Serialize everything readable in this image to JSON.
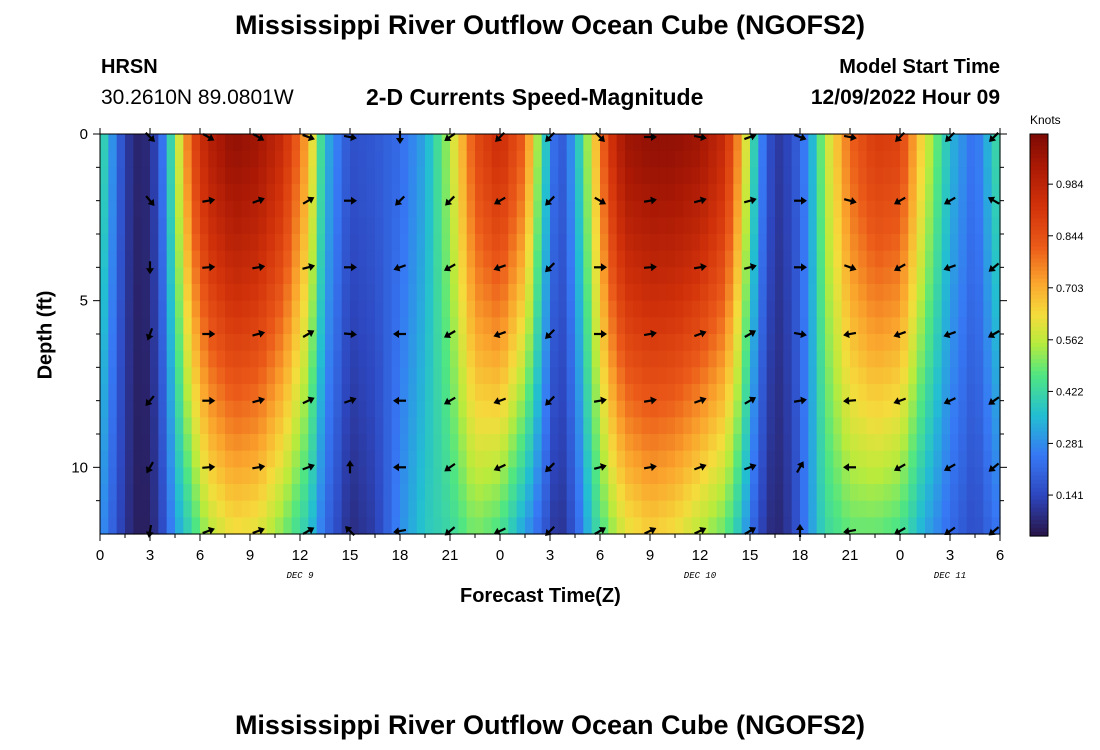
{
  "chart_data": {
    "type": "heatmap",
    "title": "Mississippi River Outflow Ocean Cube (NGOFS2)",
    "title_repeat": "Mississippi River Outflow Ocean Cube (NGOFS2)",
    "station": "HRSN",
    "location": "30.2610N  89.0801W",
    "subtitle": "2-D Currents Speed-Magnitude",
    "model_start_label": "Model Start Time",
    "model_start_value": "12/09/2022 Hour 09",
    "xlabel": "Forecast Time(Z)",
    "ylabel": "Depth (ft)",
    "x_range_hours": [
      0,
      54
    ],
    "y_range_ft": [
      0,
      12
    ],
    "x_tick_labels": [
      "0",
      "3",
      "6",
      "9",
      "12",
      "15",
      "18",
      "21",
      "0",
      "3",
      "6",
      "9",
      "12",
      "15",
      "18",
      "21",
      "0",
      "3",
      "6"
    ],
    "y_tick_values": [
      0,
      5,
      10
    ],
    "y_tick_labels": [
      "0",
      "5",
      "10"
    ],
    "date_labels": [
      {
        "text": "DEC 9",
        "hour": 12
      },
      {
        "text": "DEC 10",
        "hour": 36
      },
      {
        "text": "DEC 11",
        "hour": 51
      }
    ],
    "colorbar": {
      "title": "Knots",
      "min": 0.03,
      "max": 1.12,
      "tick_labels": [
        "0.141",
        "0.281",
        "0.422",
        "0.562",
        "0.703",
        "0.844",
        "0.984"
      ],
      "tick_values": [
        0.141,
        0.281,
        0.422,
        0.562,
        0.703,
        0.844,
        0.984
      ]
    },
    "speed_profile_hours": [
      0,
      1.5,
      2.5,
      3.5,
      4.5,
      5.5,
      6.5,
      8,
      9.5,
      11,
      12.5,
      13.5,
      15,
      16.5,
      18,
      19.5,
      21,
      22.5,
      24,
      25.5,
      26.5,
      27.5,
      28.5,
      29.5,
      30.5,
      31.5,
      33,
      34.5,
      36,
      37.5,
      38.5,
      39.5,
      40.5,
      41.5,
      42.5,
      43.5,
      45,
      46.5,
      48,
      49.5,
      51,
      52.5,
      54
    ],
    "surface_speed_knots": [
      0.45,
      0.12,
      0.05,
      0.15,
      0.5,
      0.85,
      1.0,
      1.08,
      1.05,
      0.95,
      0.7,
      0.35,
      0.16,
      0.18,
      0.22,
      0.32,
      0.55,
      0.85,
      0.95,
      0.8,
      0.45,
      0.15,
      0.32,
      0.6,
      0.9,
      1.05,
      1.08,
      1.08,
      1.05,
      0.95,
      0.7,
      0.3,
      0.1,
      0.15,
      0.28,
      0.55,
      0.8,
      0.9,
      0.88,
      0.6,
      0.35,
      0.22,
      0.45
    ],
    "bottom_speed_knots": [
      0.3,
      0.1,
      0.04,
      0.1,
      0.3,
      0.42,
      0.55,
      0.62,
      0.6,
      0.5,
      0.38,
      0.22,
      0.08,
      0.12,
      0.28,
      0.38,
      0.42,
      0.5,
      0.45,
      0.3,
      0.2,
      0.08,
      0.18,
      0.38,
      0.5,
      0.6,
      0.65,
      0.62,
      0.55,
      0.48,
      0.35,
      0.15,
      0.06,
      0.12,
      0.28,
      0.42,
      0.48,
      0.48,
      0.45,
      0.32,
      0.22,
      0.15,
      0.25
    ],
    "arrow_depths_ft": [
      0,
      2,
      4,
      6,
      8,
      10,
      12
    ],
    "arrows": [
      {
        "hour": 3,
        "directions_deg": [
          -45,
          -50,
          -90,
          -110,
          -130,
          -120,
          -100
        ]
      },
      {
        "hour": 6.5,
        "directions_deg": [
          -30,
          10,
          5,
          0,
          0,
          5,
          20
        ]
      },
      {
        "hour": 9.5,
        "directions_deg": [
          -30,
          20,
          10,
          15,
          15,
          10,
          20
        ]
      },
      {
        "hour": 12.5,
        "directions_deg": [
          -20,
          30,
          15,
          30,
          25,
          20,
          30
        ]
      },
      {
        "hour": 15,
        "directions_deg": [
          -10,
          0,
          0,
          -5,
          20,
          90,
          135
        ]
      },
      {
        "hour": 18,
        "directions_deg": [
          -90,
          -135,
          -160,
          180,
          180,
          180,
          -170
        ]
      },
      {
        "hour": 21,
        "directions_deg": [
          -145,
          -135,
          -150,
          -150,
          -150,
          -145,
          -140
        ]
      },
      {
        "hour": 24,
        "directions_deg": [
          -135,
          -150,
          -160,
          -160,
          -160,
          -155,
          -155
        ]
      },
      {
        "hour": 27,
        "directions_deg": [
          -135,
          -135,
          -135,
          -135,
          -135,
          -135,
          -135
        ]
      },
      {
        "hour": 30,
        "directions_deg": [
          -45,
          -30,
          0,
          0,
          10,
          15,
          30
        ]
      },
      {
        "hour": 33,
        "directions_deg": [
          0,
          10,
          5,
          10,
          10,
          10,
          25
        ]
      },
      {
        "hour": 36,
        "directions_deg": [
          -10,
          15,
          10,
          20,
          20,
          20,
          25
        ]
      },
      {
        "hour": 39,
        "directions_deg": [
          20,
          15,
          15,
          30,
          30,
          20,
          30
        ]
      },
      {
        "hour": 42,
        "directions_deg": [
          -20,
          0,
          0,
          -10,
          10,
          60,
          90
        ]
      },
      {
        "hour": 45,
        "directions_deg": [
          -10,
          -15,
          -20,
          -170,
          -175,
          180,
          -170
        ]
      },
      {
        "hour": 48,
        "directions_deg": [
          -135,
          -150,
          -150,
          -160,
          -160,
          -150,
          -150
        ]
      },
      {
        "hour": 51,
        "directions_deg": [
          -135,
          -150,
          -160,
          -160,
          -155,
          -150,
          -145
        ]
      },
      {
        "hour": 54,
        "directions_deg": [
          -135,
          150,
          -140,
          -150,
          -145,
          -140,
          -140
        ]
      }
    ]
  }
}
